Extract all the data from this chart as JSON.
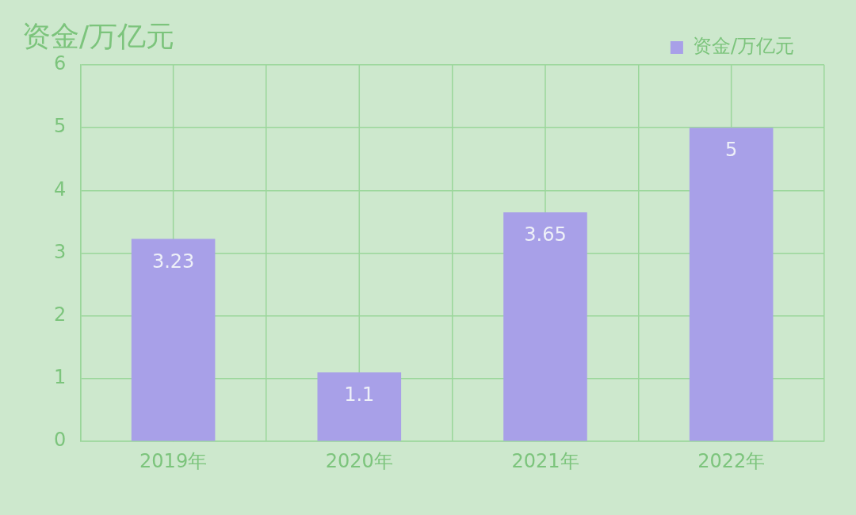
{
  "chart_data": {
    "type": "bar",
    "title": "资金/万亿元",
    "categories": [
      "2019年",
      "2020年",
      "2021年",
      "2022年"
    ],
    "series": [
      {
        "name": "资金/万亿元",
        "color": "#a8a0e8",
        "values": [
          3.23,
          1.1,
          3.65,
          5
        ]
      }
    ],
    "ylim": [
      0,
      6
    ],
    "yticks": [
      0,
      1,
      2,
      3,
      4,
      5,
      6
    ],
    "grid": true,
    "legend": "top right",
    "data_labels": true
  }
}
